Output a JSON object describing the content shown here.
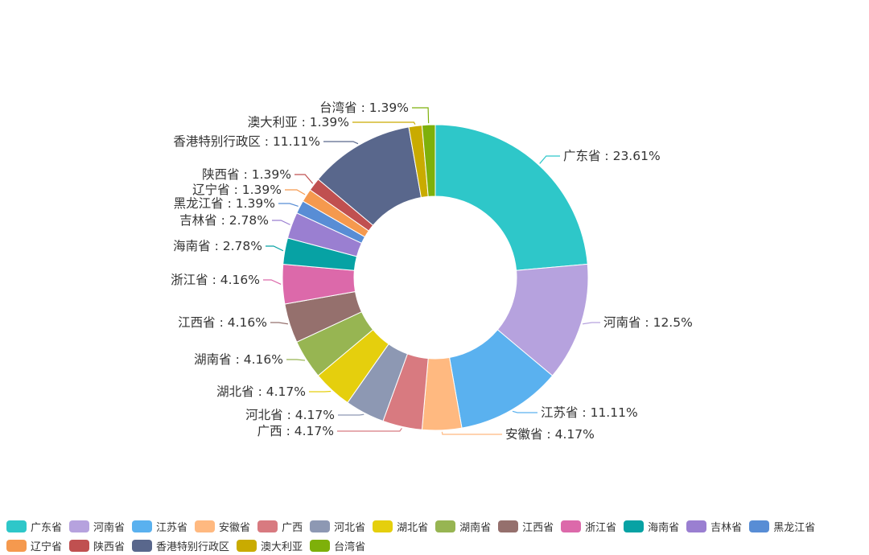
{
  "chart_data": {
    "type": "pie",
    "donut": true,
    "legend_position": "bottom",
    "label_format": "{name} : {value}%",
    "slices": [
      {
        "name": "广东省",
        "value": 23.61,
        "color": "#2ec7c9"
      },
      {
        "name": "河南省",
        "value": 12.5,
        "color": "#b6a2de"
      },
      {
        "name": "江苏省",
        "value": 11.11,
        "color": "#5ab1ef"
      },
      {
        "name": "安徽省",
        "value": 4.17,
        "color": "#ffb980"
      },
      {
        "name": "广西",
        "value": 4.17,
        "color": "#d87a80"
      },
      {
        "name": "河北省",
        "value": 4.17,
        "color": "#8d98b3"
      },
      {
        "name": "湖北省",
        "value": 4.17,
        "color": "#e5cf0d"
      },
      {
        "name": "湖南省",
        "value": 4.16,
        "color": "#97b552"
      },
      {
        "name": "江西省",
        "value": 4.16,
        "color": "#95706d"
      },
      {
        "name": "浙江省",
        "value": 4.16,
        "color": "#dc69aa"
      },
      {
        "name": "海南省",
        "value": 2.78,
        "color": "#07a2a4"
      },
      {
        "name": "吉林省",
        "value": 2.78,
        "color": "#9a7fd1"
      },
      {
        "name": "黑龙江省",
        "value": 1.39,
        "color": "#588dd5"
      },
      {
        "name": "辽宁省",
        "value": 1.39,
        "color": "#f5994e"
      },
      {
        "name": "陕西省",
        "value": 1.39,
        "color": "#c05050"
      },
      {
        "name": "香港特别行政区",
        "value": 11.11,
        "color": "#59678c"
      },
      {
        "name": "澳大利亚",
        "value": 1.39,
        "color": "#c9ab00"
      },
      {
        "name": "台湾省",
        "value": 1.39,
        "color": "#7eb00a"
      }
    ]
  }
}
